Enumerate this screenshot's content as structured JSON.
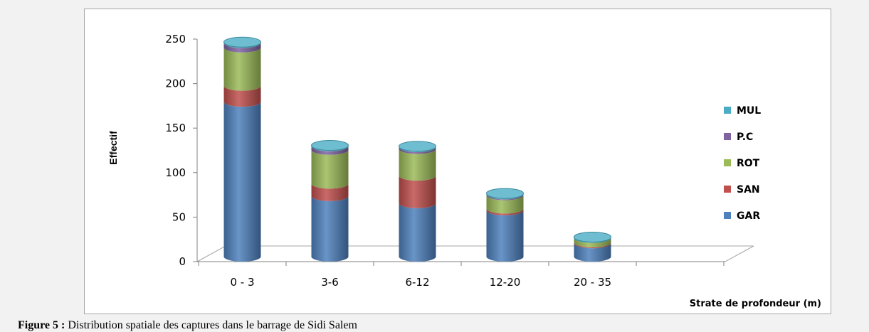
{
  "figure_caption": {
    "label": "Figure 5 :",
    "text": " Distribution spatiale des captures dans le barrage de Sidi Salem"
  },
  "chart_data": {
    "type": "bar",
    "stacked": true,
    "style": "3d-cylinder",
    "categories": [
      "0 - 3",
      "3-6",
      "6-12",
      "12-20",
      "20 - 35"
    ],
    "xlabel": "Strate de profondeur  (m)",
    "ylabel": "Effectif",
    "ylim": [
      0,
      250
    ],
    "yticks": [
      0,
      50,
      100,
      150,
      200,
      250
    ],
    "grid": false,
    "legend_position": "right",
    "series": [
      {
        "name": "GAR",
        "color": "#4f81bd",
        "values": [
          174,
          68,
          60,
          52,
          15
        ]
      },
      {
        "name": "SAN",
        "color": "#c0504d",
        "values": [
          18,
          14,
          31,
          2,
          1
        ]
      },
      {
        "name": "ROT",
        "color": "#9bbb59",
        "values": [
          43,
          38,
          30,
          15,
          5
        ]
      },
      {
        "name": "P.C",
        "color": "#8064a2",
        "values": [
          5,
          4,
          2,
          1,
          0
        ]
      },
      {
        "name": "MUL",
        "color": "#4bacc6",
        "values": [
          1,
          1,
          1,
          1,
          1
        ]
      }
    ]
  }
}
